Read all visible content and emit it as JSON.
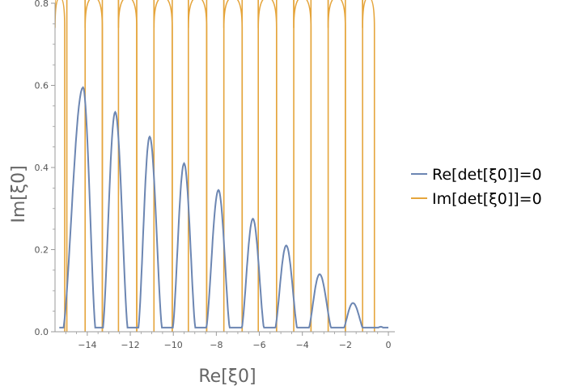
{
  "chart_data": {
    "type": "line",
    "xlabel": "Re[ξ0]",
    "ylabel": "Im[ξ0]",
    "xlim": [
      -15.5,
      0.3
    ],
    "ylim": [
      0,
      0.8
    ],
    "x_ticks": [
      -14,
      -12,
      -10,
      -8,
      -6,
      -4,
      -2,
      0
    ],
    "x_tick_labels": [
      "−14",
      "−12",
      "−10",
      "−8",
      "−6",
      "−4",
      "−2",
      "0"
    ],
    "y_ticks": [
      0,
      0.2,
      0.4,
      0.6,
      0.8
    ],
    "y_tick_labels": [
      "0.0",
      "0.2",
      "0.4",
      "0.6",
      "0.8"
    ],
    "grid": false,
    "legend_position": "right",
    "colors": {
      "re": "#6c86b2",
      "im": "#e5a53c",
      "axis": "#9a9a9a"
    },
    "legend": {
      "re_label": "Re[det[ξ0]]=0",
      "im_label": "Im[det[ξ0]]=0"
    },
    "series": [
      {
        "name": "Re[det[ξ0]]=0",
        "color": "#6c86b2",
        "arches": [
          {
            "start": -15.15,
            "peak_x": -14.2,
            "peak_y": 0.595,
            "end": -13.6
          },
          {
            "start": -13.3,
            "peak_x": -12.7,
            "peak_y": 0.535,
            "end": -12.1
          },
          {
            "start": -11.65,
            "peak_x": -11.1,
            "peak_y": 0.475,
            "end": -10.5
          },
          {
            "start": -10.05,
            "peak_x": -9.5,
            "peak_y": 0.41,
            "end": -8.95
          },
          {
            "start": -8.5,
            "peak_x": -7.9,
            "peak_y": 0.345,
            "end": -7.35
          },
          {
            "start": -6.85,
            "peak_x": -6.3,
            "peak_y": 0.275,
            "end": -5.75
          },
          {
            "start": -5.3,
            "peak_x": -4.75,
            "peak_y": 0.21,
            "end": -4.2
          },
          {
            "start": -3.75,
            "peak_x": -3.2,
            "peak_y": 0.14,
            "end": -2.6
          },
          {
            "start": -2.15,
            "peak_x": -1.65,
            "peak_y": 0.07,
            "end": -1.1
          },
          {
            "start": -0.75,
            "peak_x": -0.35,
            "peak_y": 0.012,
            "end": 0.0
          }
        ]
      },
      {
        "name": "Im[det[ξ0]]=0",
        "color": "#e5a53c",
        "lines_x": [
          -14.95,
          -14.1,
          -13.3,
          -12.55,
          -11.7,
          -10.9,
          -10.05,
          -9.3,
          -8.45,
          -7.65,
          -6.8,
          -6.05,
          -5.2,
          -4.4,
          -3.6,
          -2.8,
          -2.0,
          -1.2
        ],
        "arches": [
          {
            "left": -15.5,
            "right": -15.05
          },
          {
            "left": -14.1,
            "right": -13.3
          },
          {
            "left": -12.55,
            "right": -11.7
          },
          {
            "left": -10.9,
            "right": -10.05
          },
          {
            "left": -9.3,
            "right": -8.45
          },
          {
            "left": -7.65,
            "right": -6.8
          },
          {
            "left": -6.05,
            "right": -5.2
          },
          {
            "left": -4.4,
            "right": -3.6
          },
          {
            "left": -2.8,
            "right": -2.0
          },
          {
            "left": -1.2,
            "right": -0.65
          }
        ]
      }
    ]
  }
}
